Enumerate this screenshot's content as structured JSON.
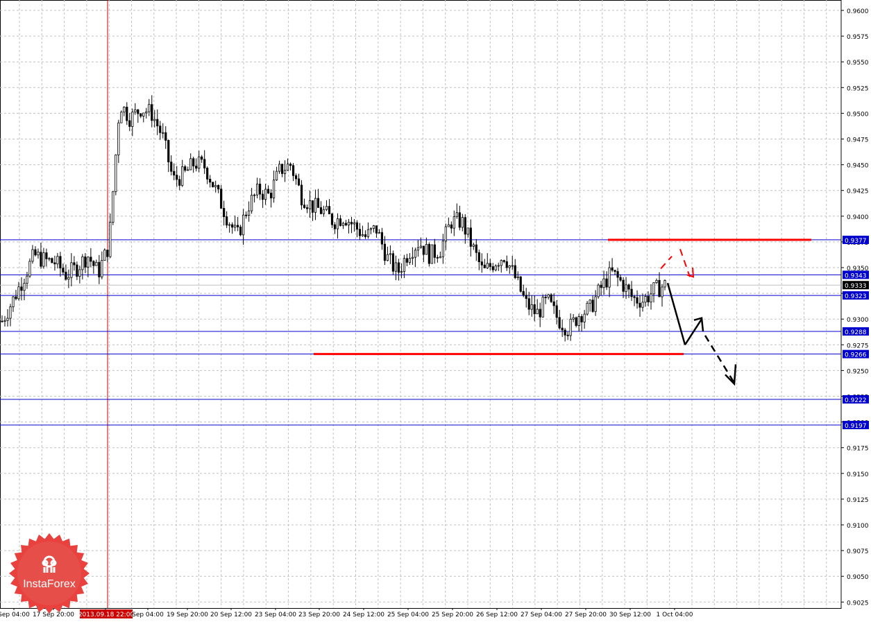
{
  "chart_data": {
    "type": "candlestick",
    "ylim": [
      0.9015,
      0.961
    ],
    "y_ticks": [
      "0.9600",
      "0.9575",
      "0.9550",
      "0.9525",
      "0.9500",
      "0.9475",
      "0.9450",
      "0.9425",
      "0.9400",
      "0.9375",
      "0.9350",
      "0.9325",
      "0.9300",
      "0.9275",
      "0.9250",
      "0.9225",
      "0.9200",
      "0.9175",
      "0.9150",
      "0.9125",
      "0.9100",
      "0.9075",
      "0.9050",
      "0.9025"
    ],
    "x_ticks": [
      "Sep 04:00",
      "17 Sep 20:00",
      "2013.09.18 22:00",
      "Sep 04:00",
      "19 Sep 20:00",
      "20 Sep 12:00",
      "23 Sep 04:00",
      "23 Sep 20:00",
      "24 Sep 12:00",
      "25 Sep 04:00",
      "25 Sep 20:00",
      "26 Sep 12:00",
      "27 Sep 04:00",
      "27 Sep 20:00",
      "30 Sep 12:00",
      "1 Oct 04:00"
    ],
    "highlighted_time": "2013.09.18 22:00",
    "current_price": "0.9333",
    "level_labels": [
      "0.9377",
      "0.9343",
      "0.9323",
      "0.9288",
      "0.9266",
      "0.9222",
      "0.9197"
    ],
    "levels": [
      0.9377,
      0.9343,
      0.9323,
      0.9288,
      0.9266,
      0.9222,
      0.9197
    ],
    "resistance": 0.9377,
    "support": 0.9266,
    "candle_anchors": [
      [
        0.9298,
        0.929,
        0.9305
      ],
      [
        0.9318,
        0.93,
        0.933
      ],
      [
        0.934,
        0.932,
        0.9352
      ],
      [
        0.9362,
        0.9345,
        0.9366
      ],
      [
        0.9357,
        0.935,
        0.9362
      ],
      [
        0.9355,
        0.9348,
        0.936
      ],
      [
        0.9343,
        0.9335,
        0.935
      ],
      [
        0.935,
        0.9342,
        0.9358
      ],
      [
        0.9362,
        0.9355,
        0.9368
      ],
      [
        0.9345,
        0.9338,
        0.9352
      ],
      [
        0.9372,
        0.934,
        0.938
      ],
      [
        0.951,
        0.95,
        0.9525
      ],
      [
        0.9495,
        0.9485,
        0.952
      ],
      [
        0.9505,
        0.9488,
        0.9522
      ],
      [
        0.95,
        0.949,
        0.952
      ],
      [
        0.9478,
        0.947,
        0.9495
      ],
      [
        0.9435,
        0.9425,
        0.9445
      ],
      [
        0.944,
        0.943,
        0.945
      ],
      [
        0.9452,
        0.944,
        0.9458
      ],
      [
        0.9448,
        0.9438,
        0.9455
      ],
      [
        0.9425,
        0.9418,
        0.943
      ],
      [
        0.94,
        0.9385,
        0.941
      ],
      [
        0.938,
        0.937,
        0.9395
      ],
      [
        0.941,
        0.9395,
        0.942
      ],
      [
        0.9425,
        0.941,
        0.9435
      ],
      [
        0.942,
        0.9405,
        0.943
      ],
      [
        0.9445,
        0.943,
        0.9455
      ],
      [
        0.945,
        0.944,
        0.9458
      ],
      [
        0.942,
        0.941,
        0.943
      ],
      [
        0.941,
        0.9395,
        0.9418
      ],
      [
        0.9405,
        0.9395,
        0.9412
      ],
      [
        0.9395,
        0.938,
        0.9405
      ],
      [
        0.94,
        0.939,
        0.941
      ],
      [
        0.939,
        0.938,
        0.9398
      ],
      [
        0.938,
        0.937,
        0.939
      ],
      [
        0.9388,
        0.9375,
        0.9395
      ],
      [
        0.936,
        0.935,
        0.937
      ],
      [
        0.9345,
        0.9338,
        0.9352
      ],
      [
        0.9365,
        0.9355,
        0.9375
      ],
      [
        0.9375,
        0.9365,
        0.9388
      ],
      [
        0.9362,
        0.9355,
        0.937
      ],
      [
        0.9368,
        0.9358,
        0.9375
      ],
      [
        0.9395,
        0.9385,
        0.9402
      ],
      [
        0.9395,
        0.938,
        0.94
      ],
      [
        0.937,
        0.936,
        0.9378
      ],
      [
        0.9345,
        0.934,
        0.9355
      ],
      [
        0.9355,
        0.9345,
        0.9362
      ],
      [
        0.9362,
        0.9352,
        0.937
      ],
      [
        0.934,
        0.933,
        0.935
      ],
      [
        0.9315,
        0.93,
        0.9322
      ],
      [
        0.9305,
        0.9295,
        0.9315
      ],
      [
        0.9318,
        0.931,
        0.9324
      ],
      [
        0.93,
        0.929,
        0.931
      ],
      [
        0.929,
        0.928,
        0.9298
      ],
      [
        0.9305,
        0.9295,
        0.9312
      ],
      [
        0.931,
        0.93,
        0.932
      ],
      [
        0.933,
        0.932,
        0.934
      ],
      [
        0.9345,
        0.9335,
        0.9355
      ],
      [
        0.9335,
        0.9328,
        0.9342
      ],
      [
        0.932,
        0.9315,
        0.933
      ],
      [
        0.9318,
        0.931,
        0.9325
      ],
      [
        0.9328,
        0.9315,
        0.9333
      ],
      [
        0.9333,
        0.9325,
        0.9338
      ]
    ],
    "forecast_arrows": [
      {
        "color": "#000000",
        "style": "solid",
        "price_path": [
          0.9335,
          0.9275
        ]
      },
      {
        "color": "#000000",
        "style": "solid",
        "price_path": [
          0.9275,
          0.93
        ]
      },
      {
        "color": "#000000",
        "style": "dashed",
        "price_path": [
          0.9284,
          0.9238
        ]
      },
      {
        "color": "#ff0000",
        "style": "dashed",
        "price_path": [
          0.9349,
          0.9361
        ]
      },
      {
        "color": "#ff0000",
        "style": "dashed",
        "price_path": [
          0.9368,
          0.9341
        ]
      }
    ]
  },
  "branding": {
    "logo_text": "InstaForex"
  },
  "colors": {
    "background": "#ffffff",
    "grid": "#c0c0c0",
    "level_line": "#0000cc",
    "accent": "#ff0000",
    "candle": "#000000",
    "label_bg": "#0000cc",
    "label_text": "#ffffff"
  }
}
